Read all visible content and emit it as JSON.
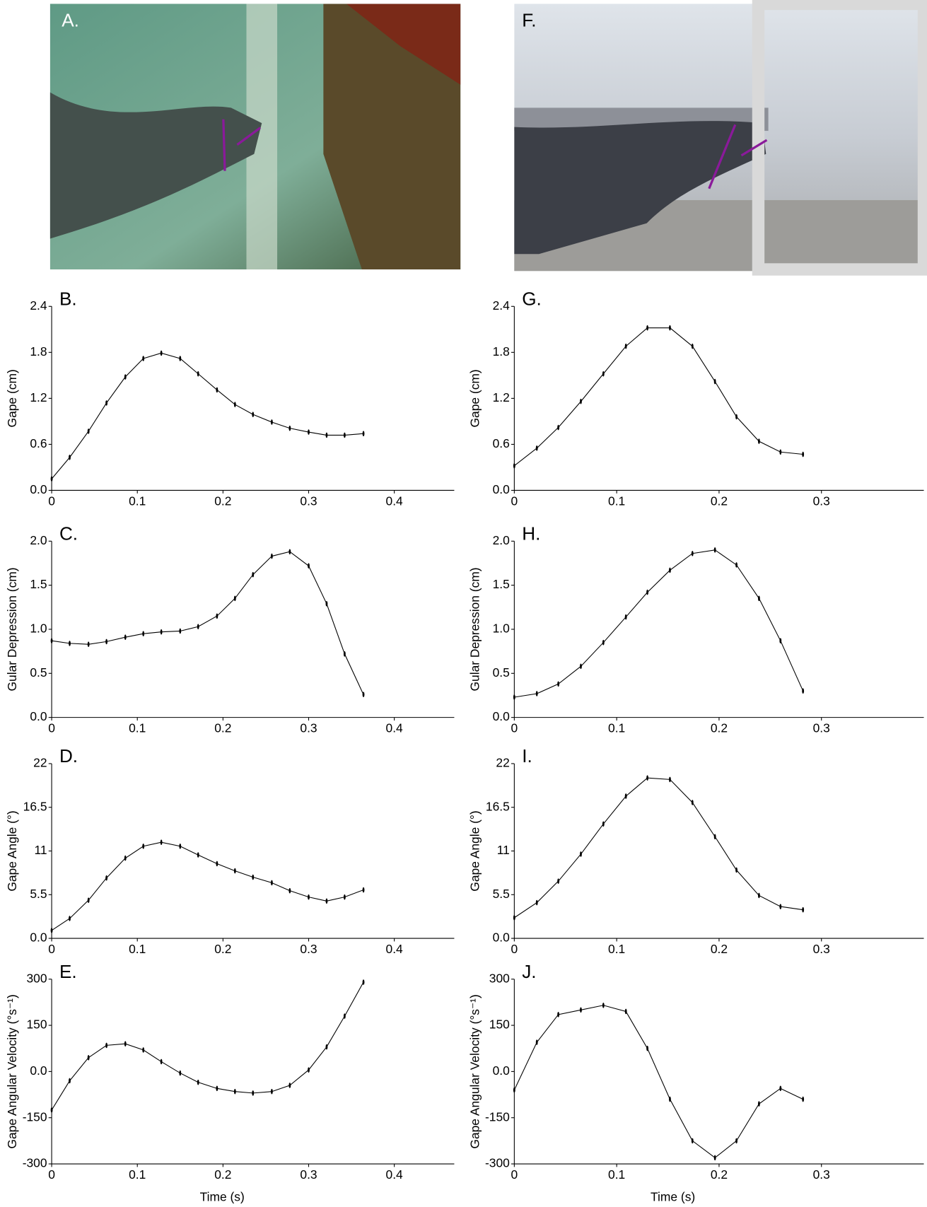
{
  "photos": [
    {
      "label": "A."
    },
    {
      "label": "F."
    }
  ],
  "chart_data": [
    {
      "type": "line",
      "label": "B.",
      "ylabel": "Gape (cm)",
      "color": "#000000",
      "x": [
        0,
        0.021,
        0.043,
        0.064,
        0.086,
        0.107,
        0.128,
        0.15,
        0.171,
        0.193,
        0.214,
        0.235,
        0.257,
        0.278,
        0.3,
        0.321,
        0.342,
        0.364
      ],
      "values": [
        0.15,
        0.43,
        0.77,
        1.14,
        1.48,
        1.72,
        1.79,
        1.72,
        1.52,
        1.31,
        1.12,
        0.99,
        0.89,
        0.81,
        0.76,
        0.72,
        0.72,
        0.74
      ],
      "xlim": [
        0,
        0.47
      ],
      "xticks": [
        0,
        0.1,
        0.2,
        0.3,
        0.4
      ],
      "ylim": [
        0,
        2.4
      ],
      "yticks": [
        {
          "value": 0,
          "label": "0.0"
        },
        0.6,
        1.2,
        1.8,
        2.4
      ]
    },
    {
      "type": "line",
      "label": "C.",
      "ylabel": "Gular Depression (cm)",
      "color": "#000000",
      "x": [
        0,
        0.021,
        0.043,
        0.064,
        0.086,
        0.107,
        0.128,
        0.15,
        0.171,
        0.193,
        0.214,
        0.235,
        0.257,
        0.278,
        0.3,
        0.321,
        0.342,
        0.364
      ],
      "values": [
        0.87,
        0.84,
        0.83,
        0.86,
        0.91,
        0.95,
        0.97,
        0.98,
        1.03,
        1.15,
        1.35,
        1.62,
        1.83,
        1.88,
        1.72,
        1.29,
        0.72,
        0.26
      ],
      "xlim": [
        0,
        0.47
      ],
      "xticks": [
        0,
        0.1,
        0.2,
        0.3,
        0.4
      ],
      "ylim": [
        0,
        2.0
      ],
      "yticks": [
        {
          "value": 0,
          "label": "0.0"
        },
        0.5,
        {
          "value": 1,
          "label": "1.0"
        },
        1.5,
        {
          "value": 2,
          "label": "2.0"
        }
      ]
    },
    {
      "type": "line",
      "label": "D.",
      "ylabel": "Gape  Angle (°)",
      "color": "#000000",
      "x": [
        0,
        0.021,
        0.043,
        0.064,
        0.086,
        0.107,
        0.128,
        0.15,
        0.171,
        0.193,
        0.214,
        0.235,
        0.257,
        0.278,
        0.3,
        0.321,
        0.342,
        0.364
      ],
      "values": [
        1.0,
        2.5,
        4.8,
        7.6,
        10.1,
        11.6,
        12.1,
        11.6,
        10.5,
        9.4,
        8.5,
        7.7,
        7.0,
        6.0,
        5.2,
        4.7,
        5.2,
        6.1
      ],
      "xlim": [
        0,
        0.47
      ],
      "xticks": [
        0,
        0.1,
        0.2,
        0.3,
        0.4
      ],
      "ylim": [
        0,
        22
      ],
      "yticks": [
        {
          "value": 0,
          "label": "0.0"
        },
        5.5,
        11,
        16.5,
        22
      ]
    },
    {
      "type": "line",
      "label": "E.",
      "ylabel": "Gape Angular Velocity (°s⁻¹)",
      "xlabel": "Time (s)",
      "color": "#000000",
      "x": [
        0,
        0.021,
        0.043,
        0.064,
        0.086,
        0.107,
        0.128,
        0.15,
        0.171,
        0.193,
        0.214,
        0.235,
        0.257,
        0.278,
        0.3,
        0.321,
        0.342,
        0.364
      ],
      "values": [
        -125,
        -30,
        45,
        85,
        90,
        70,
        32,
        -5,
        -35,
        -55,
        -65,
        -70,
        -65,
        -45,
        5,
        80,
        180,
        290
      ],
      "xlim": [
        0,
        0.47
      ],
      "xticks": [
        0,
        0.1,
        0.2,
        0.3,
        0.4
      ],
      "ylim": [
        -300,
        300
      ],
      "yticks": [
        -300,
        -150,
        {
          "value": 0,
          "label": "0.0"
        },
        150,
        300
      ]
    },
    {
      "type": "line",
      "label": "G.",
      "ylabel": "Gape (cm)",
      "color": "#000000",
      "x": [
        0,
        0.022,
        0.043,
        0.065,
        0.087,
        0.109,
        0.13,
        0.152,
        0.174,
        0.196,
        0.217,
        0.239,
        0.26,
        0.282
      ],
      "values": [
        0.32,
        0.55,
        0.82,
        1.16,
        1.52,
        1.88,
        2.12,
        2.12,
        1.88,
        1.42,
        0.96,
        0.64,
        0.5,
        0.47
      ],
      "xlim": [
        0,
        0.4
      ],
      "xticks": [
        0,
        0.1,
        0.2,
        0.3
      ],
      "ylim": [
        0,
        2.4
      ],
      "yticks": [
        {
          "value": 0,
          "label": "0.0"
        },
        0.6,
        1.2,
        1.8,
        2.4
      ]
    },
    {
      "type": "line",
      "label": "H.",
      "ylabel": "Gular Depression (cm)",
      "color": "#000000",
      "x": [
        0,
        0.022,
        0.043,
        0.065,
        0.087,
        0.109,
        0.13,
        0.152,
        0.174,
        0.196,
        0.217,
        0.239,
        0.26,
        0.282
      ],
      "values": [
        0.23,
        0.27,
        0.38,
        0.58,
        0.85,
        1.14,
        1.42,
        1.67,
        1.86,
        1.9,
        1.73,
        1.35,
        0.87,
        0.3
      ],
      "xlim": [
        0,
        0.4
      ],
      "xticks": [
        0,
        0.1,
        0.2,
        0.3
      ],
      "ylim": [
        0,
        2.0
      ],
      "yticks": [
        {
          "value": 0,
          "label": "0.0"
        },
        0.5,
        {
          "value": 1,
          "label": "1.0"
        },
        1.5,
        {
          "value": 2,
          "label": "2.0"
        }
      ]
    },
    {
      "type": "line",
      "label": "I.",
      "ylabel": "Gape Angle (°)",
      "color": "#000000",
      "x": [
        0,
        0.022,
        0.043,
        0.065,
        0.087,
        0.109,
        0.13,
        0.152,
        0.174,
        0.196,
        0.217,
        0.239,
        0.26,
        0.282
      ],
      "values": [
        2.6,
        4.5,
        7.2,
        10.6,
        14.4,
        17.9,
        20.2,
        20.0,
        17.1,
        12.8,
        8.6,
        5.4,
        4.0,
        3.6
      ],
      "xlim": [
        0,
        0.4
      ],
      "xticks": [
        0,
        0.1,
        0.2,
        0.3
      ],
      "ylim": [
        0,
        22
      ],
      "yticks": [
        {
          "value": 0,
          "label": "0.0"
        },
        5.5,
        11,
        16.5,
        22
      ]
    },
    {
      "type": "line",
      "label": "J.",
      "ylabel": "Gape Angular Velocity (°s⁻¹)",
      "xlabel": "Time (s)",
      "color": "#000000",
      "x": [
        0,
        0.022,
        0.043,
        0.065,
        0.087,
        0.109,
        0.13,
        0.152,
        0.174,
        0.196,
        0.217,
        0.239,
        0.26,
        0.282
      ],
      "values": [
        -60,
        95,
        185,
        200,
        215,
        195,
        75,
        -90,
        -225,
        -280,
        -225,
        -105,
        -55,
        -90
      ],
      "xlim": [
        0,
        0.4
      ],
      "xticks": [
        0,
        0.1,
        0.2,
        0.3
      ],
      "ylim": [
        -300,
        300
      ],
      "yticks": [
        -300,
        -150,
        {
          "value": 0,
          "label": "0.0"
        },
        150,
        300
      ]
    }
  ]
}
